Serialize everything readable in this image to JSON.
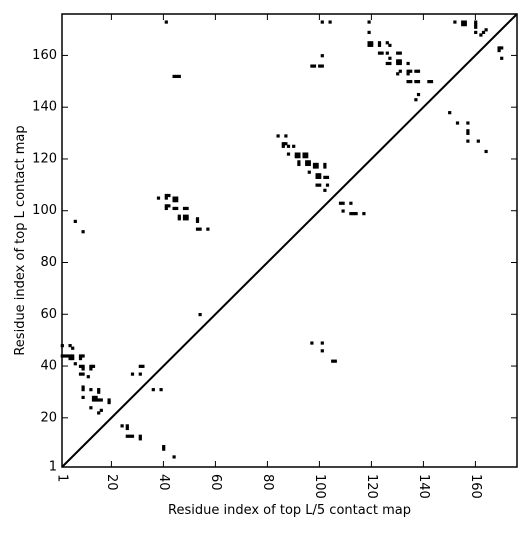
{
  "chart_data": {
    "type": "heatmap",
    "title": "",
    "xlabel": "Residue index of top L/5 contact map",
    "ylabel": "Residue index of top L contact map",
    "xlim": [
      1,
      176
    ],
    "ylim": [
      1,
      176
    ],
    "x_ticks": [
      "1",
      "20",
      "40",
      "60",
      "80",
      "100",
      "120",
      "140",
      "160"
    ],
    "x_tick_values": [
      1,
      20,
      40,
      60,
      80,
      100,
      120,
      140,
      160
    ],
    "y_ticks": [
      "1",
      "20",
      "40",
      "60",
      "80",
      "100",
      "120",
      "140",
      "160"
    ],
    "y_tick_values": [
      1,
      20,
      40,
      60,
      80,
      100,
      120,
      140,
      160
    ],
    "diagonal": {
      "from": [
        1,
        1
      ],
      "to": [
        176,
        176
      ],
      "color": "#000000"
    },
    "grid": false,
    "cell_color": "#000000",
    "contacts_upper_L5": [
      [
        41,
        173
      ],
      [
        101,
        173
      ],
      [
        104,
        173
      ],
      [
        119,
        173
      ],
      [
        152,
        173
      ],
      [
        155,
        173
      ],
      [
        156,
        173
      ],
      [
        160,
        173
      ],
      [
        155,
        172
      ],
      [
        156,
        172
      ],
      [
        160,
        172
      ],
      [
        160,
        171
      ],
      [
        119,
        169
      ],
      [
        160,
        169
      ],
      [
        163,
        169
      ],
      [
        164,
        170
      ],
      [
        162,
        168
      ],
      [
        119,
        165
      ],
      [
        120,
        165
      ],
      [
        123,
        165
      ],
      [
        126,
        165
      ],
      [
        119,
        164
      ],
      [
        120,
        164
      ],
      [
        123,
        164
      ],
      [
        127,
        164
      ],
      [
        169,
        163
      ],
      [
        170,
        163
      ],
      [
        169,
        162
      ],
      [
        123,
        161
      ],
      [
        124,
        161
      ],
      [
        126,
        161
      ],
      [
        130,
        161
      ],
      [
        131,
        161
      ],
      [
        101,
        160
      ],
      [
        127,
        159
      ],
      [
        126,
        157
      ],
      [
        127,
        157
      ],
      [
        130,
        158
      ],
      [
        131,
        158
      ],
      [
        130,
        157
      ],
      [
        131,
        157
      ],
      [
        134,
        157
      ],
      [
        170,
        159
      ],
      [
        97,
        156
      ],
      [
        98,
        156
      ],
      [
        100,
        156
      ],
      [
        101,
        156
      ],
      [
        134,
        154
      ],
      [
        135,
        154
      ],
      [
        137,
        154
      ],
      [
        138,
        154
      ],
      [
        131,
        154
      ],
      [
        130,
        153
      ],
      [
        134,
        153
      ],
      [
        44,
        152
      ],
      [
        45,
        152
      ],
      [
        46,
        152
      ],
      [
        134,
        150
      ],
      [
        135,
        150
      ],
      [
        137,
        150
      ],
      [
        138,
        150
      ],
      [
        142,
        150
      ],
      [
        143,
        150
      ],
      [
        138,
        145
      ],
      [
        137,
        143
      ],
      [
        150,
        138
      ],
      [
        153,
        134
      ],
      [
        157,
        134
      ],
      [
        157,
        131
      ],
      [
        157,
        130
      ],
      [
        157,
        127
      ],
      [
        161,
        127
      ],
      [
        164,
        123
      ],
      [
        84,
        129
      ],
      [
        87,
        129
      ],
      [
        86,
        126
      ],
      [
        87,
        126
      ],
      [
        86,
        125
      ],
      [
        88,
        125
      ],
      [
        90,
        125
      ],
      [
        88,
        122
      ],
      [
        91,
        122
      ],
      [
        92,
        122
      ],
      [
        94,
        122
      ],
      [
        95,
        122
      ],
      [
        91,
        121
      ],
      [
        92,
        121
      ],
      [
        94,
        121
      ],
      [
        95,
        121
      ],
      [
        92,
        119
      ],
      [
        95,
        119
      ],
      [
        96,
        119
      ],
      [
        92,
        118
      ],
      [
        95,
        118
      ],
      [
        96,
        118
      ],
      [
        98,
        118
      ],
      [
        99,
        118
      ],
      [
        98,
        117
      ],
      [
        99,
        117
      ],
      [
        102,
        118
      ],
      [
        102,
        117
      ],
      [
        96,
        115
      ],
      [
        99,
        114
      ],
      [
        100,
        114
      ],
      [
        99,
        113
      ],
      [
        100,
        113
      ],
      [
        102,
        113
      ],
      [
        103,
        113
      ],
      [
        99,
        110
      ],
      [
        100,
        110
      ],
      [
        103,
        110
      ],
      [
        102,
        108
      ],
      [
        108,
        103
      ],
      [
        109,
        103
      ],
      [
        112,
        103
      ],
      [
        109,
        100
      ],
      [
        112,
        99
      ],
      [
        113,
        99
      ],
      [
        114,
        99
      ],
      [
        117,
        99
      ]
    ],
    "contacts_lower_L": [
      [
        1,
        48
      ],
      [
        1,
        44
      ],
      [
        2,
        44
      ],
      [
        4,
        48
      ],
      [
        5,
        47
      ],
      [
        3,
        44
      ],
      [
        4,
        44
      ],
      [
        4,
        43
      ],
      [
        5,
        44
      ],
      [
        5,
        43
      ],
      [
        6,
        41
      ],
      [
        8,
        44
      ],
      [
        9,
        44
      ],
      [
        8,
        43
      ],
      [
        8,
        40
      ],
      [
        9,
        40
      ],
      [
        9,
        39
      ],
      [
        8,
        37
      ],
      [
        9,
        37
      ],
      [
        12,
        40
      ],
      [
        13,
        40
      ],
      [
        12,
        39
      ],
      [
        11,
        36
      ],
      [
        12,
        31
      ],
      [
        13,
        28
      ],
      [
        14,
        28
      ],
      [
        13,
        27
      ],
      [
        14,
        27
      ],
      [
        9,
        32
      ],
      [
        9,
        31
      ],
      [
        9,
        28
      ],
      [
        12,
        24
      ],
      [
        15,
        31
      ],
      [
        15,
        30
      ],
      [
        15,
        27
      ],
      [
        16,
        27
      ],
      [
        16,
        23
      ],
      [
        15,
        22
      ],
      [
        19,
        27
      ],
      [
        19,
        26
      ],
      [
        24,
        17
      ],
      [
        26,
        17
      ],
      [
        26,
        16
      ],
      [
        26,
        13
      ],
      [
        27,
        13
      ],
      [
        28,
        13
      ],
      [
        31,
        13
      ],
      [
        31,
        12
      ],
      [
        28,
        37
      ],
      [
        31,
        37
      ],
      [
        31,
        40
      ],
      [
        32,
        40
      ],
      [
        36,
        31
      ],
      [
        39,
        31
      ],
      [
        40,
        9
      ],
      [
        40,
        8
      ],
      [
        44,
        5
      ],
      [
        6,
        96
      ],
      [
        9,
        92
      ],
      [
        38,
        105
      ],
      [
        41,
        106
      ],
      [
        42,
        106
      ],
      [
        41,
        105
      ],
      [
        41,
        102
      ],
      [
        42,
        102
      ],
      [
        41,
        101
      ],
      [
        44,
        105
      ],
      [
        45,
        105
      ],
      [
        44,
        104
      ],
      [
        45,
        104
      ],
      [
        44,
        101
      ],
      [
        45,
        101
      ],
      [
        48,
        101
      ],
      [
        49,
        101
      ],
      [
        48,
        98
      ],
      [
        49,
        98
      ],
      [
        48,
        97
      ],
      [
        49,
        97
      ],
      [
        46,
        98
      ],
      [
        46,
        97
      ],
      [
        53,
        97
      ],
      [
        53,
        96
      ],
      [
        53,
        93
      ],
      [
        54,
        93
      ],
      [
        57,
        93
      ],
      [
        54,
        60
      ],
      [
        97,
        49
      ],
      [
        101,
        49
      ],
      [
        101,
        46
      ],
      [
        105,
        42
      ],
      [
        106,
        42
      ]
    ]
  }
}
